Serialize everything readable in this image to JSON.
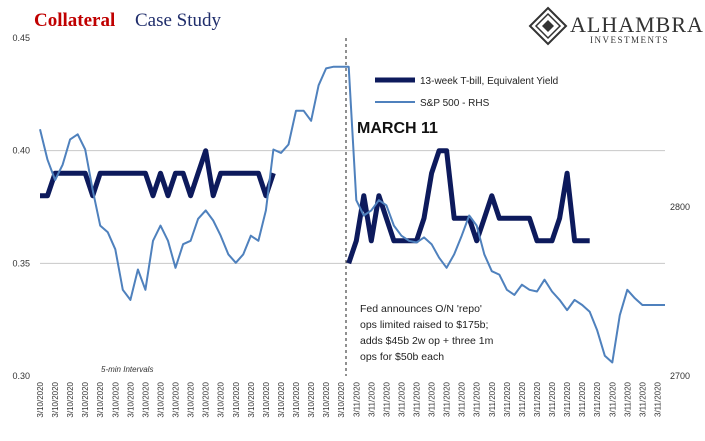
{
  "chart_data": {
    "type": "line",
    "title": {
      "highlight": "Collateral",
      "rest": "Case Study"
    },
    "brand": {
      "name": "ALHAMBRA",
      "sub": "INVESTMENTS"
    },
    "annotations": {
      "event": "MARCH 11",
      "note": [
        "Fed announces O/N 'repo'",
        "ops limited raised to $175b;",
        "adds $45b 2w op + three 1m",
        "ops for $50b each"
      ],
      "interval": "5-min Intervals"
    },
    "categories": [
      "3/10/2020",
      null,
      "3/10/2020",
      null,
      "3/10/2020",
      null,
      "3/10/2020",
      null,
      "3/10/2020",
      null,
      "3/10/2020",
      null,
      "3/10/2020",
      null,
      "3/10/2020",
      null,
      "3/10/2020",
      null,
      "3/10/2020",
      null,
      "3/10/2020",
      null,
      "3/10/2020",
      null,
      "3/10/2020",
      null,
      "3/10/2020",
      null,
      "3/10/2020",
      null,
      "3/10/2020",
      null,
      "3/10/2020",
      null,
      "3/10/2020",
      null,
      "3/10/2020",
      null,
      "3/10/2020",
      null,
      "3/10/2020",
      null,
      "3/11/2020",
      null,
      "3/11/2020",
      null,
      "3/11/2020",
      null,
      "3/11/2020",
      null,
      "3/11/2020",
      null,
      "3/11/2020",
      null,
      "3/11/2020",
      null,
      "3/11/2020",
      null,
      "3/11/2020",
      null,
      "3/11/2020",
      null,
      "3/11/2020",
      null,
      "3/11/2020",
      null,
      "3/11/2020",
      null,
      "3/11/2020",
      null,
      "3/11/2020",
      null,
      "3/11/2020",
      null,
      "3/11/2020",
      null,
      "3/11/2020",
      null,
      "3/11/2020",
      null,
      "3/11/2020",
      null,
      "3/11/2020",
      null
    ],
    "series": [
      {
        "name": "13-week T-bill, Equivalent Yield",
        "color": "#0d1a5c",
        "width": 5,
        "values": [
          0.38,
          0.38,
          0.39,
          0.39,
          0.39,
          0.39,
          0.39,
          0.38,
          0.39,
          0.39,
          0.39,
          0.39,
          0.39,
          0.39,
          0.39,
          0.38,
          0.39,
          0.38,
          0.39,
          0.39,
          0.38,
          0.39,
          0.4,
          0.38,
          0.39,
          0.39,
          0.39,
          0.39,
          0.39,
          0.39,
          0.38,
          0.39,
          null,
          null,
          null,
          null,
          null,
          null,
          null,
          null,
          null,
          0.35,
          0.36,
          0.38,
          0.36,
          0.38,
          0.37,
          0.36,
          0.36,
          0.36,
          0.36,
          0.37,
          0.39,
          0.4,
          0.4,
          0.37,
          0.37,
          0.37,
          0.36,
          0.37,
          0.38,
          0.37,
          0.37,
          0.37,
          0.37,
          0.37,
          0.36,
          0.36,
          0.36,
          0.37,
          0.39,
          0.36,
          0.36,
          0.36,
          null,
          null,
          null,
          null,
          null,
          null,
          null,
          null,
          null,
          null
        ]
      },
      {
        "name": "S&P 500 - RHS",
        "color": "#4f81bd",
        "width": 2,
        "axis": "y2",
        "values": [
          2846,
          2828,
          2816,
          2825,
          2840,
          2843,
          2834,
          2810,
          2789,
          2785,
          2775,
          2751,
          2745,
          2763,
          2751,
          2780,
          2789,
          2780,
          2764,
          2778,
          2780,
          2793,
          2798,
          2792,
          2783,
          2772,
          2767,
          2772,
          2783,
          2780,
          2798,
          2834,
          2832,
          2837,
          2857,
          2857,
          2851,
          2872,
          2882,
          2883,
          2883,
          2883,
          2804,
          2795,
          2798,
          2804,
          2801,
          2789,
          2783,
          2780,
          2779,
          2782,
          2778,
          2770,
          2764,
          2772,
          2783,
          2795,
          2789,
          2772,
          2762,
          2760,
          2751,
          2748,
          2754,
          2751,
          2750,
          2757,
          2750,
          2745,
          2739,
          2745,
          2742,
          2738,
          2727,
          2712,
          2708,
          2736,
          2751,
          2746,
          2742,
          2742,
          2742,
          2742
        ]
      }
    ],
    "ylim": [
      0.3,
      0.45
    ],
    "yticks": [
      {
        "value": 0.3,
        "label": "0.30"
      },
      0.35,
      {
        "value": 0.4,
        "label": "0.40"
      },
      0.45
    ],
    "y2lim": [
      2700,
      2900
    ],
    "y2ticks": [
      2700,
      2800
    ],
    "grid": true
  }
}
